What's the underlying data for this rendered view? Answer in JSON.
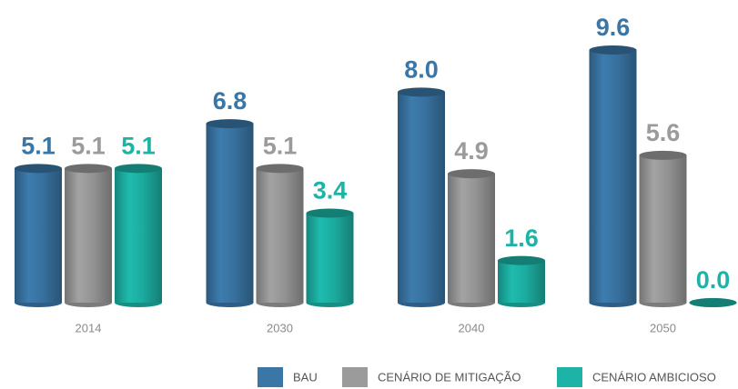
{
  "chart_data": {
    "type": "bar",
    "categories": [
      "2014",
      "2030",
      "2040",
      "2050"
    ],
    "series": [
      {
        "name": "BAU",
        "color": "#3a76a6",
        "values": [
          5.1,
          6.8,
          8.0,
          9.6
        ],
        "value_labels": [
          "5.1",
          "6.8",
          "8.0",
          "9.6"
        ]
      },
      {
        "name": "CENÁRIO DE MITIGAÇÃO",
        "color": "#9b9b9b",
        "values": [
          5.1,
          5.1,
          4.9,
          5.6
        ],
        "value_labels": [
          "5.1",
          "5.1",
          "4.9",
          "5.6"
        ]
      },
      {
        "name": "CENÁRIO AMBICIOSO",
        "color": "#1db3a6",
        "values": [
          5.1,
          3.4,
          1.6,
          0.0
        ],
        "value_labels": [
          "5.1",
          "3.4",
          "1.6",
          "0.0"
        ]
      }
    ]
  }
}
